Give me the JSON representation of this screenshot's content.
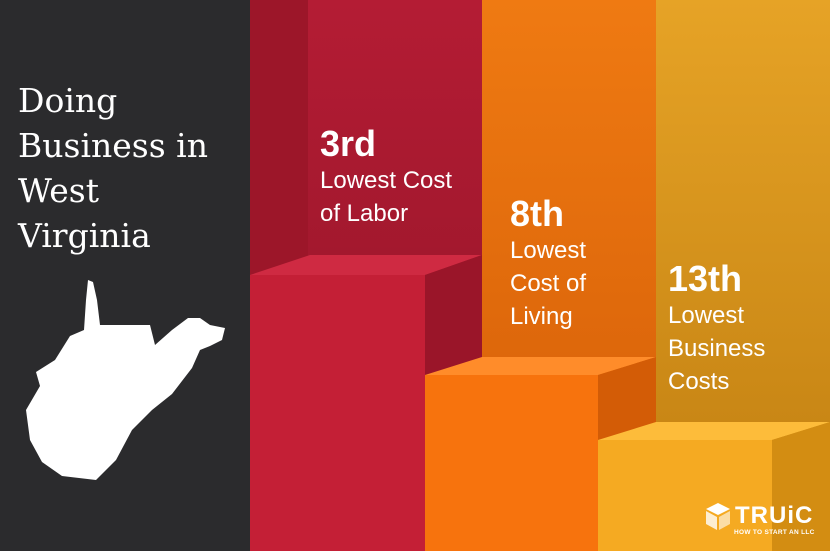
{
  "title_lines": [
    "Doing",
    "Business in",
    "West",
    "Virginia"
  ],
  "rankings": [
    {
      "rank": "3rd",
      "label_lines": [
        "Lowest Cost",
        "of Labor"
      ]
    },
    {
      "rank": "8th",
      "label_lines": [
        "Lowest",
        "Cost of",
        "Living"
      ]
    },
    {
      "rank": "13th",
      "label_lines": [
        "Lowest",
        "Business",
        "Costs"
      ]
    }
  ],
  "logo": {
    "name": "TRUiC",
    "tagline": "HOW TO START AN LLC"
  }
}
